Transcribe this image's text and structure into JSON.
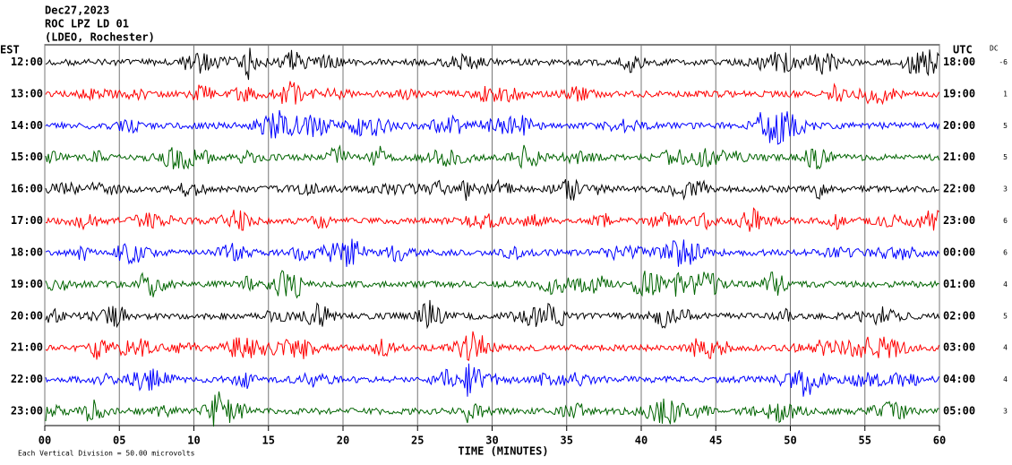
{
  "chart_data": {
    "type": "helicorder",
    "header": [
      "Dec27,2023",
      "ROC LPZ LD 01",
      "(LDEO, Rochester)"
    ],
    "left_zone": "EST",
    "right_zone": "UTC",
    "dc_label": "DC",
    "xlabel": "TIME (MINUTES)",
    "footer": "Each Vertical Division =  50.00 microvolts",
    "xlim": [
      0,
      60
    ],
    "xticks": [
      {
        "value": 0,
        "label": "00"
      },
      {
        "value": 5,
        "label": "05"
      },
      10,
      15,
      20,
      25,
      30,
      35,
      40,
      45,
      50,
      55,
      60
    ],
    "grid": true,
    "rows": [
      {
        "est": "12:00",
        "utc": "18:00",
        "dc": -6,
        "color": "#000000"
      },
      {
        "est": "13:00",
        "utc": "19:00",
        "dc": 1,
        "color": "#ff0000"
      },
      {
        "est": "14:00",
        "utc": "20:00",
        "dc": 5,
        "color": "#0000ff"
      },
      {
        "est": "15:00",
        "utc": "21:00",
        "dc": 5,
        "color": "#006400"
      },
      {
        "est": "16:00",
        "utc": "22:00",
        "dc": 3,
        "color": "#000000"
      },
      {
        "est": "17:00",
        "utc": "23:00",
        "dc": 6,
        "color": "#ff0000"
      },
      {
        "est": "18:00",
        "utc": "00:00",
        "dc": 6,
        "color": "#0000ff"
      },
      {
        "est": "19:00",
        "utc": "01:00",
        "dc": 4,
        "color": "#006400"
      },
      {
        "est": "20:00",
        "utc": "02:00",
        "dc": 5,
        "color": "#000000"
      },
      {
        "est": "21:00",
        "utc": "03:00",
        "dc": 4,
        "color": "#ff0000"
      },
      {
        "est": "22:00",
        "utc": "04:00",
        "dc": 4,
        "color": "#0000ff"
      },
      {
        "est": "23:00",
        "utc": "05:00",
        "dc": 3,
        "color": "#006400"
      }
    ]
  }
}
